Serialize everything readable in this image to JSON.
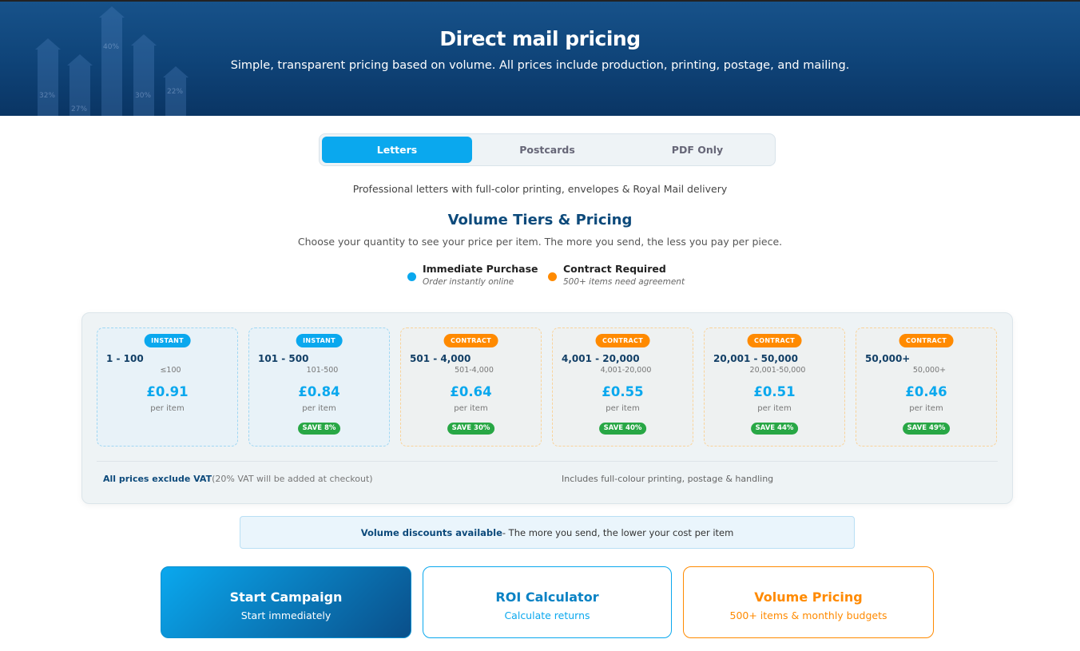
{
  "hero": {
    "title": "Direct mail pricing",
    "subtitle": "Simple, transparent pricing based on volume. All prices include production, printing, postage, and mailing.",
    "decor_labels": [
      "32%",
      "27%",
      "40%",
      "30%",
      "22%"
    ]
  },
  "tabs": [
    {
      "label": "Letters",
      "active": true
    },
    {
      "label": "Postcards",
      "active": false
    },
    {
      "label": "PDF Only",
      "active": false
    }
  ],
  "lead": "Professional letters with full-color printing, envelopes & Royal Mail delivery",
  "section": {
    "title": "Volume Tiers & Pricing",
    "subtitle": "Choose your quantity to see your price per item. The more you send, the less you pay per piece."
  },
  "legend": [
    {
      "title": "Immediate Purchase",
      "sub": "Order instantly online",
      "color": "#0aa8ee"
    },
    {
      "title": "Contract Required",
      "sub": "500+ items need agreement",
      "color": "#ff8a00"
    }
  ],
  "tiers": [
    {
      "badge": "INSTANT",
      "range": "1 - 100",
      "sub": "≤100",
      "price": "£0.91",
      "per": "per item",
      "save": ""
    },
    {
      "badge": "INSTANT",
      "range": "101 - 500",
      "sub": "101-500",
      "price": "£0.84",
      "per": "per item",
      "save": "SAVE 8%"
    },
    {
      "badge": "CONTRACT",
      "range": "501 - 4,000",
      "sub": "501-4,000",
      "price": "£0.64",
      "per": "per item",
      "save": "SAVE 30%"
    },
    {
      "badge": "CONTRACT",
      "range": "4,001 - 20,000",
      "sub": "4,001-20,000",
      "price": "£0.55",
      "per": "per item",
      "save": "SAVE 40%"
    },
    {
      "badge": "CONTRACT",
      "range": "20,001 - 50,000",
      "sub": "20,001-50,000",
      "price": "£0.51",
      "per": "per item",
      "save": "SAVE 44%"
    },
    {
      "badge": "CONTRACT",
      "range": "50,000+",
      "sub": "50,000+",
      "price": "£0.46",
      "per": "per item",
      "save": "SAVE 49%"
    }
  ],
  "colors": {
    "instant": "#0aa8ee",
    "contract": "#ff8a00",
    "save": "#28a745",
    "navy": "#0d4a7b"
  },
  "footer": {
    "vat_bold": "All prices exclude VAT",
    "vat_note": "(20% VAT will be added at checkout)",
    "includes": "Includes full-colour printing, postage & handling"
  },
  "banner": {
    "bold": "Volume discounts available",
    "text": "- The more you send, the lower your cost per item"
  },
  "actions": [
    {
      "title": "Start Campaign",
      "sub": "Start immediately"
    },
    {
      "title": "ROI Calculator",
      "sub": "Calculate returns"
    },
    {
      "title": "Volume Pricing",
      "sub": "500+ items & monthly budgets"
    }
  ]
}
